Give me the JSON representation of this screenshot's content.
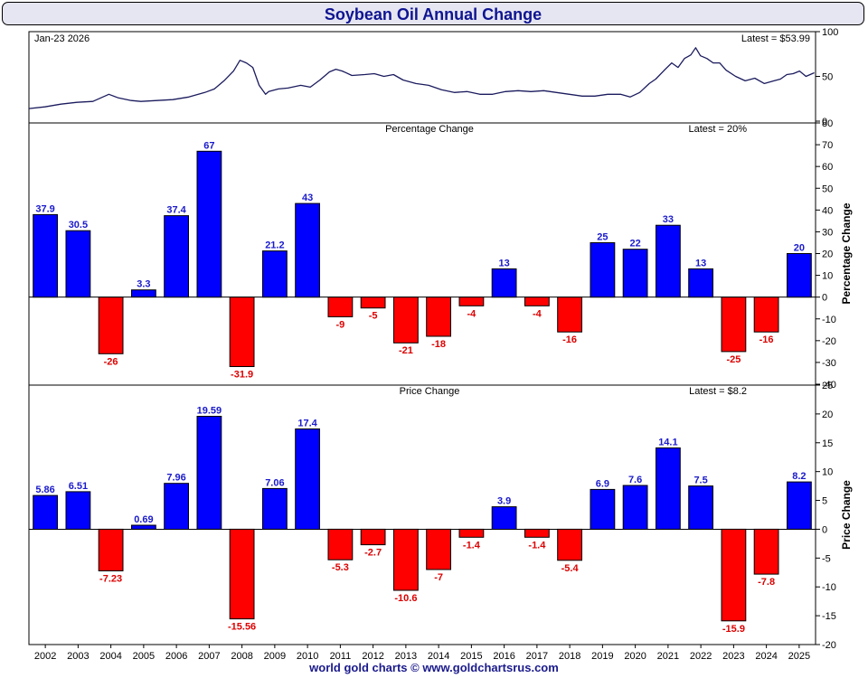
{
  "title": "Soybean Oil Annual Change",
  "footer": "world gold charts © www.goldchartsrus.com",
  "colors": {
    "up": "#0000ff",
    "down": "#ff0000",
    "up_label": "#1a1acc",
    "down_label": "#dd0000",
    "line": "#1b1b5e"
  },
  "chart_data": [
    {
      "type": "line",
      "title": "",
      "date_label": "Jan-23  2026",
      "latest_label": "Latest = $53.99",
      "ylim": [
        0,
        100
      ],
      "yticks": [
        0,
        50,
        100
      ],
      "x_range": [
        2001.5,
        2026.1
      ],
      "x": [
        2001.5,
        2002.0,
        2002.5,
        2003.0,
        2003.5,
        2004.0,
        2004.3,
        2004.7,
        2005.0,
        2005.5,
        2006.0,
        2006.5,
        2007.0,
        2007.3,
        2007.6,
        2007.9,
        2008.1,
        2008.3,
        2008.5,
        2008.7,
        2008.9,
        2009.0,
        2009.3,
        2009.6,
        2010.0,
        2010.3,
        2010.6,
        2010.9,
        2011.1,
        2011.3,
        2011.6,
        2012.0,
        2012.3,
        2012.6,
        2012.9,
        2013.2,
        2013.6,
        2014.0,
        2014.4,
        2014.8,
        2015.2,
        2015.6,
        2016.0,
        2016.4,
        2016.8,
        2017.2,
        2017.6,
        2018.0,
        2018.4,
        2018.8,
        2019.2,
        2019.6,
        2020.0,
        2020.3,
        2020.6,
        2020.9,
        2021.1,
        2021.4,
        2021.6,
        2021.8,
        2022.0,
        2022.2,
        2022.35,
        2022.5,
        2022.7,
        2022.9,
        2023.1,
        2023.3,
        2023.6,
        2023.9,
        2024.2,
        2024.5,
        2024.8,
        2025.0,
        2025.2,
        2025.4,
        2025.6,
        2025.8,
        2026.06
      ],
      "y": [
        14,
        16,
        19,
        21,
        22,
        30,
        26,
        23,
        22,
        23,
        24,
        27,
        32,
        36,
        45,
        56,
        68,
        65,
        60,
        40,
        30,
        33,
        36,
        37,
        40,
        38,
        46,
        55,
        58,
        56,
        51,
        52,
        53,
        50,
        52,
        46,
        42,
        40,
        35,
        32,
        33,
        30,
        30,
        33,
        34,
        33,
        34,
        32,
        30,
        28,
        28,
        30,
        30,
        27,
        32,
        42,
        47,
        58,
        65,
        60,
        70,
        74,
        82,
        73,
        70,
        65,
        65,
        57,
        50,
        45,
        48,
        42,
        45,
        47,
        52,
        53,
        56,
        50,
        54
      ]
    },
    {
      "type": "bar",
      "title": "Percentage Change",
      "latest_label": "Latest = 20%",
      "ylabel": "Percentage Change",
      "ylim": [
        -40,
        80
      ],
      "yticks": [
        -40,
        -30,
        -20,
        -10,
        0,
        10,
        20,
        30,
        40,
        50,
        60,
        70,
        80
      ],
      "categories": [
        "2002",
        "2003",
        "2004",
        "2005",
        "2006",
        "2007",
        "2008",
        "2009",
        "2010",
        "2011",
        "2012",
        "2013",
        "2014",
        "2015",
        "2016",
        "2017",
        "2018",
        "2019",
        "2020",
        "2021",
        "2022",
        "2023",
        "2024",
        "2025"
      ],
      "values": [
        37.9,
        30.5,
        -26,
        3.3,
        37.4,
        67,
        -31.9,
        21.2,
        43,
        -9,
        -5,
        -21,
        -18,
        -4,
        13,
        -4,
        -16,
        25,
        22,
        33,
        13,
        -25,
        -16,
        20
      ],
      "labels": [
        "37.9",
        "30.5",
        "-26",
        "3.3",
        "37.4",
        "67",
        "-31.9",
        "21.2",
        "43",
        "-9",
        "-5",
        "-21",
        "-18",
        "-4",
        "13",
        "-4",
        "-16",
        "25",
        "22",
        "33",
        "13",
        "-25",
        "-16",
        "20"
      ]
    },
    {
      "type": "bar",
      "title": "Price Change",
      "latest_label": "Latest = $8.2",
      "ylabel": "Price Change",
      "ylim": [
        -20,
        25
      ],
      "yticks": [
        -20,
        -15,
        -10,
        -5,
        0,
        5,
        10,
        15,
        20,
        25
      ],
      "categories": [
        "2002",
        "2003",
        "2004",
        "2005",
        "2006",
        "2007",
        "2008",
        "2009",
        "2010",
        "2011",
        "2012",
        "2013",
        "2014",
        "2015",
        "2016",
        "2017",
        "2018",
        "2019",
        "2020",
        "2021",
        "2022",
        "2023",
        "2024",
        "2025"
      ],
      "values": [
        5.86,
        6.51,
        -7.23,
        0.69,
        7.96,
        19.59,
        -15.56,
        7.06,
        17.4,
        -5.3,
        -2.7,
        -10.6,
        -7,
        -1.4,
        3.9,
        -1.4,
        -5.4,
        6.9,
        7.6,
        14.1,
        7.5,
        -15.9,
        -7.8,
        8.2
      ],
      "labels": [
        "5.86",
        "6.51",
        "-7.23",
        "0.69",
        "7.96",
        "19.59",
        "-15.56",
        "7.06",
        "17.4",
        "-5.3",
        "-2.7",
        "-10.6",
        "-7",
        "-1.4",
        "3.9",
        "-1.4",
        "-5.4",
        "6.9",
        "7.6",
        "14.1",
        "7.5",
        "-15.9",
        "-7.8",
        "8.2"
      ]
    }
  ]
}
